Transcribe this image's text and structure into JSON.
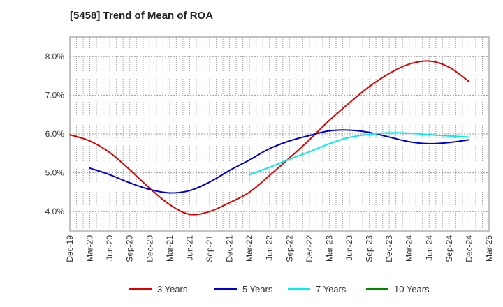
{
  "chart_data": {
    "type": "line",
    "title": "[5458]  Trend of Mean of ROA",
    "xlabel": "",
    "ylabel": "",
    "ylim": [
      3.5,
      8.5
    ],
    "y_ticks": [
      4.0,
      5.0,
      6.0,
      7.0,
      8.0
    ],
    "y_tick_labels": [
      "4.0%",
      "5.0%",
      "6.0%",
      "7.0%",
      "8.0%"
    ],
    "grid": true,
    "legend_position": "bottom",
    "categories": [
      "Dec-19",
      "Mar-20",
      "Jun-20",
      "Sep-20",
      "Dec-20",
      "Mar-21",
      "Jun-21",
      "Sep-21",
      "Dec-21",
      "Mar-22",
      "Jun-22",
      "Sep-22",
      "Dec-22",
      "Mar-23",
      "Jun-23",
      "Sep-23",
      "Dec-23",
      "Mar-24",
      "Jun-24",
      "Sep-24",
      "Dec-24",
      "Mar-25"
    ],
    "series": [
      {
        "name": "3 Years",
        "color": "#dd0000",
        "values": [
          5.98,
          5.82,
          5.52,
          5.08,
          4.6,
          4.18,
          3.93,
          4.0,
          4.23,
          4.5,
          4.93,
          5.38,
          5.85,
          6.35,
          6.8,
          7.22,
          7.56,
          7.8,
          7.88,
          7.72,
          7.35,
          null
        ]
      },
      {
        "name": "5 Years",
        "color": "#0000cc",
        "values": [
          null,
          5.12,
          4.95,
          4.74,
          4.57,
          4.48,
          4.54,
          4.76,
          5.06,
          5.33,
          5.62,
          5.82,
          5.96,
          6.08,
          6.1,
          6.04,
          5.92,
          5.8,
          5.75,
          5.78,
          5.85,
          null
        ]
      },
      {
        "name": "7 Years",
        "color": "#00eeee",
        "values": [
          null,
          null,
          null,
          null,
          null,
          null,
          null,
          null,
          null,
          4.95,
          5.14,
          5.35,
          5.54,
          5.75,
          5.91,
          5.99,
          6.03,
          6.02,
          5.98,
          5.95,
          5.92,
          null
        ]
      },
      {
        "name": "10 Years",
        "color": "#008800",
        "values": [
          null,
          null,
          null,
          null,
          null,
          null,
          null,
          null,
          null,
          null,
          null,
          null,
          null,
          null,
          null,
          null,
          null,
          null,
          null,
          null,
          null,
          null
        ]
      }
    ]
  }
}
